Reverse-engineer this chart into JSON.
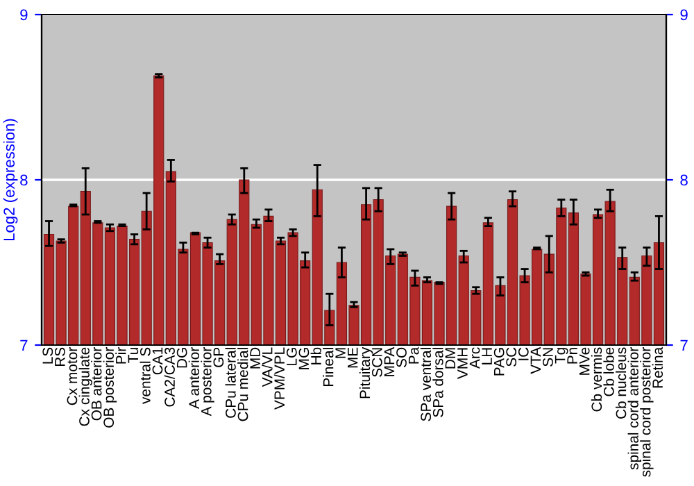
{
  "chart_data": {
    "type": "bar",
    "ylabel": "Log2 (expression)",
    "categories": [
      "LS",
      "RS",
      "Cx motor",
      "Cx cingulate",
      "OB anterior",
      "OB posterior",
      "Pir",
      "Tu",
      "ventral S",
      "CA1",
      "CA2/CA3",
      "DG",
      "A anterior",
      "A posterior",
      "GP",
      "CPu lateral",
      "CPu medial",
      "MD",
      "VA/VL",
      "VPM/VPL",
      "LG",
      "MG",
      "Hb",
      "Pineal",
      "M",
      "ME",
      "Pituitary",
      "SCN",
      "MPA",
      "SO",
      "Pa",
      "SPa ventral",
      "SPa dorsal",
      "DM",
      "VMH",
      "Arc",
      "LH",
      "PAG",
      "SC",
      "IC",
      "VTA",
      "SN",
      "Tg",
      "Pn",
      "MVe",
      "Cb vermis",
      "Cb lobe",
      "Cb nucleus",
      "spinal cord anterior",
      "spinal cord posterior",
      "Retina"
    ],
    "values": [
      7.67,
      7.63,
      7.84,
      7.93,
      7.74,
      7.71,
      7.72,
      7.64,
      7.81,
      8.63,
      8.05,
      7.58,
      7.68,
      7.62,
      7.51,
      7.76,
      8.0,
      7.73,
      7.78,
      7.63,
      7.68,
      7.51,
      7.94,
      7.21,
      7.5,
      7.24,
      7.85,
      7.88,
      7.54,
      7.55,
      7.41,
      7.39,
      7.38,
      7.84,
      7.54,
      7.33,
      7.74,
      7.36,
      7.88,
      7.42,
      7.58,
      7.55,
      7.83,
      7.8,
      7.43,
      7.79,
      7.87,
      7.53,
      7.41,
      7.54,
      7.62
    ],
    "errors": [
      [
        7.6,
        7.75
      ],
      [
        7.62,
        7.64
      ],
      [
        7.84,
        7.85
      ],
      [
        7.79,
        8.07
      ],
      [
        7.74,
        7.75
      ],
      [
        7.69,
        7.73
      ],
      [
        7.72,
        7.73
      ],
      [
        7.61,
        7.67
      ],
      [
        7.7,
        7.92
      ],
      [
        8.62,
        8.64
      ],
      [
        7.99,
        8.12
      ],
      [
        7.56,
        7.62
      ],
      [
        7.67,
        7.68
      ],
      [
        7.59,
        7.65
      ],
      [
        7.49,
        7.55
      ],
      [
        7.73,
        7.79
      ],
      [
        7.92,
        8.07
      ],
      [
        7.71,
        7.76
      ],
      [
        7.75,
        7.82
      ],
      [
        7.61,
        7.65
      ],
      [
        7.66,
        7.7
      ],
      [
        7.47,
        7.56
      ],
      [
        7.78,
        8.09
      ],
      [
        7.12,
        7.31
      ],
      [
        7.41,
        7.59
      ],
      [
        7.23,
        7.26
      ],
      [
        7.76,
        7.95
      ],
      [
        7.81,
        7.95
      ],
      [
        7.49,
        7.58
      ],
      [
        7.54,
        7.56
      ],
      [
        7.36,
        7.45
      ],
      [
        7.38,
        7.41
      ],
      [
        7.37,
        7.38
      ],
      [
        7.76,
        7.92
      ],
      [
        7.5,
        7.57
      ],
      [
        7.31,
        7.35
      ],
      [
        7.72,
        7.77
      ],
      [
        7.3,
        7.41
      ],
      [
        7.84,
        7.93
      ],
      [
        7.38,
        7.46
      ],
      [
        7.58,
        7.59
      ],
      [
        7.44,
        7.66
      ],
      [
        7.78,
        7.88
      ],
      [
        7.73,
        7.88
      ],
      [
        7.42,
        7.44
      ],
      [
        7.77,
        7.82
      ],
      [
        7.81,
        7.94
      ],
      [
        7.46,
        7.59
      ],
      [
        7.39,
        7.44
      ],
      [
        7.48,
        7.59
      ],
      [
        7.46,
        7.78
      ]
    ],
    "color": "#b22a2a",
    "ylim": [
      7,
      9
    ],
    "yticks": [
      7,
      8,
      9
    ],
    "y2lim": [
      7,
      9
    ],
    "y2ticks": [
      7,
      8,
      9
    ],
    "grid": "y"
  }
}
